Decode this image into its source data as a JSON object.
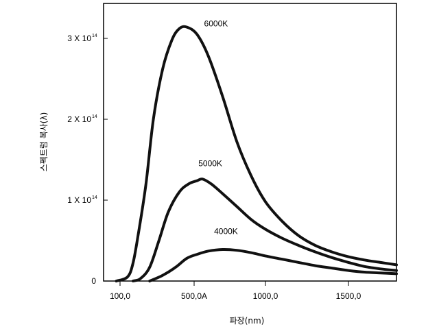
{
  "chart_data": {
    "type": "line",
    "title": "",
    "xlabel": "파장(nm)",
    "ylabel": "스펙트럼 복사(λ)",
    "xlim": [
      0,
      1800
    ],
    "ylim": [
      0,
      300000000000000.0
    ],
    "grid": false,
    "legend": "none",
    "x_ticks": [
      {
        "value": 100,
        "label": "100,0"
      },
      {
        "value": 500,
        "label": "500,0A"
      },
      {
        "value": 1000,
        "label": "1000,0"
      },
      {
        "value": 1500,
        "label": "1500,0"
      }
    ],
    "y_ticks": [
      {
        "value": 0,
        "label": "0",
        "exp": ""
      },
      {
        "value": 100000000000000.0,
        "label": "1 X 10",
        "exp": "14"
      },
      {
        "value": 200000000000000.0,
        "label": "2 X 10",
        "exp": "14"
      },
      {
        "value": 300000000000000.0,
        "label": "3 X 10",
        "exp": "14"
      }
    ],
    "series": [
      {
        "name": "6000K",
        "label_at": {
          "x": 570,
          "y": 315000000000000.0
        },
        "points": [
          [
            80,
            0
          ],
          [
            140,
            5000000000000.0
          ],
          [
            170,
            22000000000000.0
          ],
          [
            200,
            60000000000000.0
          ],
          [
            240,
            120000000000000.0
          ],
          [
            280,
            200000000000000.0
          ],
          [
            330,
            262000000000000.0
          ],
          [
            380,
            298000000000000.0
          ],
          [
            420,
            312000000000000.0
          ],
          [
            460,
            314000000000000.0
          ],
          [
            520,
            305000000000000.0
          ],
          [
            600,
            278000000000000.0
          ],
          [
            700,
            228000000000000.0
          ],
          [
            800,
            172000000000000.0
          ],
          [
            900,
            130000000000000.0
          ],
          [
            1000,
            98000000000000.0
          ],
          [
            1100,
            74000000000000.0
          ],
          [
            1200,
            56000000000000.0
          ],
          [
            1300,
            44000000000000.0
          ],
          [
            1400,
            36000000000000.0
          ],
          [
            1500,
            30000000000000.0
          ],
          [
            1600,
            26000000000000.0
          ],
          [
            1700,
            23000000000000.0
          ],
          [
            1800,
            20000000000000.0
          ]
        ]
      },
      {
        "name": "5000K",
        "label_at": {
          "x": 530,
          "y": 142000000000000.0
        },
        "points": [
          [
            170,
            0
          ],
          [
            210,
            3000000000000.0
          ],
          [
            260,
            17000000000000.0
          ],
          [
            310,
            50000000000000.0
          ],
          [
            360,
            85000000000000.0
          ],
          [
            420,
            110000000000000.0
          ],
          [
            470,
            120000000000000.0
          ],
          [
            520,
            124000000000000.0
          ],
          [
            560,
            126000000000000.0
          ],
          [
            620,
            120000000000000.0
          ],
          [
            700,
            108000000000000.0
          ],
          [
            800,
            92000000000000.0
          ],
          [
            900,
            76000000000000.0
          ],
          [
            1000,
            64000000000000.0
          ],
          [
            1100,
            53000000000000.0
          ],
          [
            1200,
            44000000000000.0
          ],
          [
            1300,
            36000000000000.0
          ],
          [
            1400,
            29000000000000.0
          ],
          [
            1500,
            23000000000000.0
          ],
          [
            1600,
            18000000000000.0
          ],
          [
            1700,
            15000000000000.0
          ],
          [
            1800,
            13000000000000.0
          ]
        ]
      },
      {
        "name": "4000K",
        "label_at": {
          "x": 640,
          "y": 58000000000000.0
        },
        "points": [
          [
            260,
            0
          ],
          [
            330,
            7000000000000.0
          ],
          [
            400,
            17000000000000.0
          ],
          [
            460,
            28000000000000.0
          ],
          [
            520,
            33000000000000.0
          ],
          [
            600,
            37000000000000.0
          ],
          [
            700,
            39000000000000.0
          ],
          [
            800,
            38000000000000.0
          ],
          [
            900,
            35000000000000.0
          ],
          [
            1000,
            31000000000000.0
          ],
          [
            1100,
            27000000000000.0
          ],
          [
            1200,
            23000000000000.0
          ],
          [
            1300,
            19000000000000.0
          ],
          [
            1400,
            16000000000000.0
          ],
          [
            1500,
            13000000000000.0
          ],
          [
            1600,
            11000000000000.0
          ],
          [
            1700,
            10000000000000.0
          ],
          [
            1800,
            9000000000000.0
          ]
        ]
      }
    ]
  }
}
